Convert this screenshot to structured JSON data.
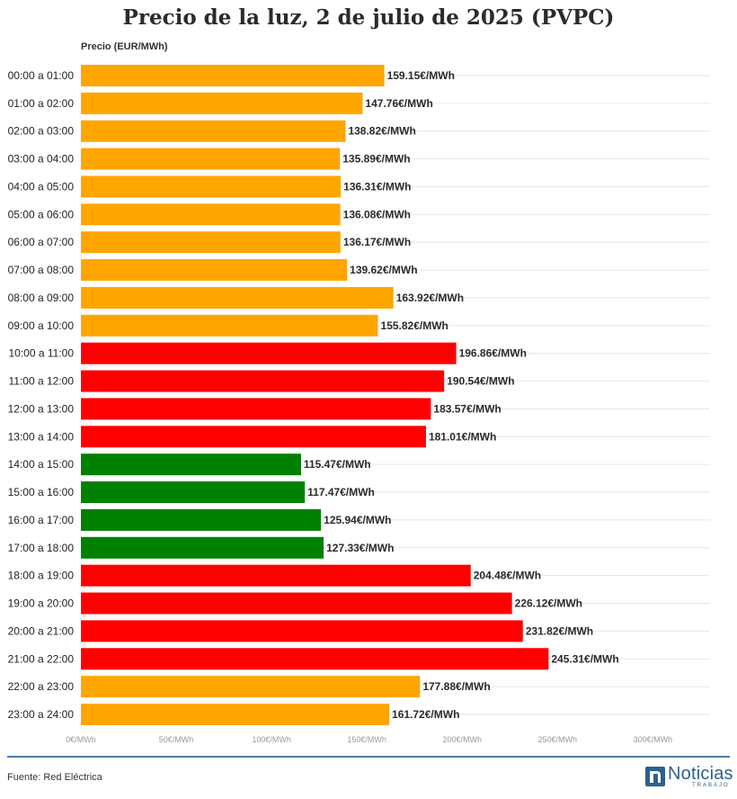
{
  "title": "Precio de la luz, 2 de julio de 2025 (PVPC)",
  "footer": {
    "source": "Fuente: Red Eléctrica",
    "logo_name": "Noticias",
    "logo_sub": "TRABAJO"
  },
  "colors": {
    "orange": "#ffa500",
    "red": "#ff0000",
    "green": "#008000",
    "grid": "#e6e6e6",
    "rule": "#4a7aa8",
    "brand": "#2f5f8c"
  },
  "chart_data": {
    "type": "bar",
    "orientation": "horizontal",
    "title": "Precio de la luz, 2 de julio de 2025 (PVPC)",
    "ylabel": "Precio (EUR/MWh)",
    "xlabel": "",
    "xlim": [
      0,
      300
    ],
    "xticks": [
      0,
      50,
      100,
      150,
      200,
      250,
      300
    ],
    "xtick_labels": [
      "0€/MWh",
      "50€/MWh",
      "100€/MWh",
      "150€/MWh",
      "200€/MWh",
      "250€/MWh",
      "300€/MWh"
    ],
    "grid": true,
    "categories": [
      "00:00 a 01:00",
      "01:00 a 02:00",
      "02:00 a 03:00",
      "03:00 a 04:00",
      "04:00 a 05:00",
      "05:00 a 06:00",
      "06:00 a 07:00",
      "07:00 a 08:00",
      "08:00 a 09:00",
      "09:00 a 10:00",
      "10:00 a 11:00",
      "11:00 a 12:00",
      "12:00 a 13:00",
      "13:00 a 14:00",
      "14:00 a 15:00",
      "15:00 a 16:00",
      "16:00 a 17:00",
      "17:00 a 18:00",
      "18:00 a 19:00",
      "19:00 a 20:00",
      "20:00 a 21:00",
      "21:00 a 22:00",
      "22:00 a 23:00",
      "23:00 a 24:00"
    ],
    "values": [
      159.15,
      147.76,
      138.82,
      135.89,
      136.31,
      136.08,
      136.17,
      139.62,
      163.92,
      155.82,
      196.86,
      190.54,
      183.57,
      181.01,
      115.47,
      117.47,
      125.94,
      127.33,
      204.48,
      226.12,
      231.82,
      245.31,
      177.88,
      161.72
    ],
    "value_labels": [
      "159.15€/MWh",
      "147.76€/MWh",
      "138.82€/MWh",
      "135.89€/MWh",
      "136.31€/MWh",
      "136.08€/MWh",
      "136.17€/MWh",
      "139.62€/MWh",
      "163.92€/MWh",
      "155.82€/MWh",
      "196.86€/MWh",
      "190.54€/MWh",
      "183.57€/MWh",
      "181.01€/MWh",
      "115.47€/MWh",
      "117.47€/MWh",
      "125.94€/MWh",
      "127.33€/MWh",
      "204.48€/MWh",
      "226.12€/MWh",
      "231.82€/MWh",
      "245.31€/MWh",
      "177.88€/MWh",
      "161.72€/MWh"
    ],
    "bar_colors": [
      "orange",
      "orange",
      "orange",
      "orange",
      "orange",
      "orange",
      "orange",
      "orange",
      "orange",
      "orange",
      "red",
      "red",
      "red",
      "red",
      "green",
      "green",
      "green",
      "green",
      "red",
      "red",
      "red",
      "red",
      "orange",
      "orange"
    ]
  }
}
